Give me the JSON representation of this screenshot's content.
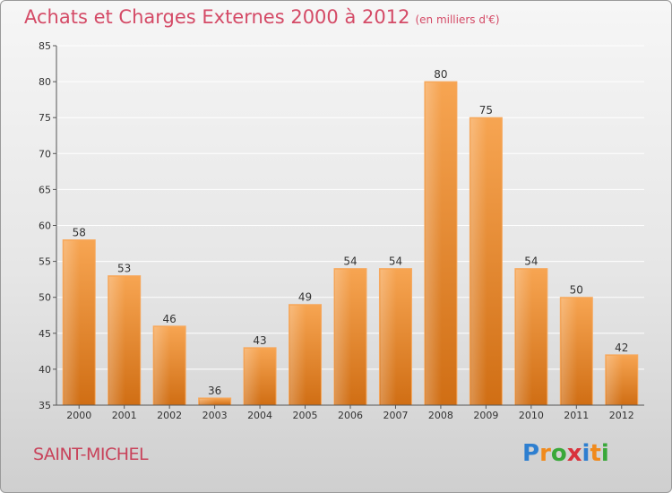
{
  "header": {
    "title": "Achats et Charges Externes 2000 à 2012",
    "unit": "(en milliers d'€)"
  },
  "footer": {
    "place": "SAINT-MICHEL",
    "logo_text": "Proxiti",
    "logo_letters": [
      {
        "ch": "P",
        "color": "#2e7fd0"
      },
      {
        "ch": "r",
        "color": "#f08a1c"
      },
      {
        "ch": "o",
        "color": "#3aa83a"
      },
      {
        "ch": "x",
        "color": "#d9323c"
      },
      {
        "ch": "i",
        "color": "#2e7fd0"
      },
      {
        "ch": "t",
        "color": "#f08a1c"
      },
      {
        "ch": "i",
        "color": "#3aa83a"
      }
    ]
  },
  "chart_data": {
    "type": "bar",
    "categories": [
      "2000",
      "2001",
      "2002",
      "2003",
      "2004",
      "2005",
      "2006",
      "2007",
      "2008",
      "2009",
      "2010",
      "2011",
      "2012"
    ],
    "values": [
      58,
      53,
      46,
      36,
      43,
      49,
      54,
      54,
      80,
      75,
      54,
      50,
      42
    ],
    "ylim": [
      35,
      85
    ],
    "yticks": [
      35,
      40,
      45,
      50,
      55,
      60,
      65,
      70,
      75,
      80,
      85
    ],
    "grid": true,
    "data_labels": true,
    "bar_color": "#f0922e"
  }
}
